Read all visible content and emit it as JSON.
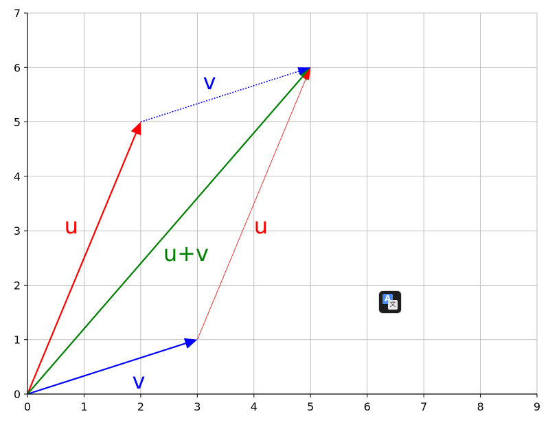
{
  "chart_data": {
    "type": "vector-plot",
    "xlim": [
      0,
      9
    ],
    "ylim": [
      0,
      7
    ],
    "xticks": [
      "0",
      "1",
      "2",
      "3",
      "4",
      "5",
      "6",
      "7",
      "8",
      "9"
    ],
    "yticks": [
      "0",
      "1",
      "2",
      "3",
      "4",
      "5",
      "6",
      "7"
    ],
    "grid": true,
    "vectors": [
      {
        "name": "u",
        "from": [
          0,
          0
        ],
        "to": [
          2,
          5
        ],
        "color": "#ff0000",
        "style": "arrow"
      },
      {
        "name": "v",
        "from": [
          0,
          0
        ],
        "to": [
          3,
          1
        ],
        "color": "#0000ff",
        "style": "arrow"
      },
      {
        "name": "u+v",
        "from": [
          0,
          0
        ],
        "to": [
          5,
          6
        ],
        "color": "#008000",
        "style": "arrow"
      },
      {
        "name": "v",
        "from": [
          2,
          5
        ],
        "to": [
          5,
          6
        ],
        "color": "#0000ff",
        "style": "dotted"
      },
      {
        "name": "u",
        "from": [
          3,
          1
        ],
        "to": [
          5,
          6
        ],
        "color": "#ff0000",
        "style": "thin"
      }
    ],
    "labels": [
      {
        "text": "u",
        "x": 0.65,
        "y": 2.95,
        "color": "#ff0000"
      },
      {
        "text": "u",
        "x": 4.0,
        "y": 2.95,
        "color": "#ff0000"
      },
      {
        "text": "u+v",
        "x": 2.4,
        "y": 2.45,
        "color": "#008000"
      },
      {
        "text": "v",
        "x": 1.85,
        "y": 0.1,
        "color": "#0000ff"
      },
      {
        "text": "v",
        "x": 3.1,
        "y": 5.6,
        "color": "#0000ff"
      }
    ]
  },
  "overlay": {
    "translate_icon": "translate-icon",
    "translate_glyph_a": "A",
    "translate_glyph_b": "文"
  }
}
